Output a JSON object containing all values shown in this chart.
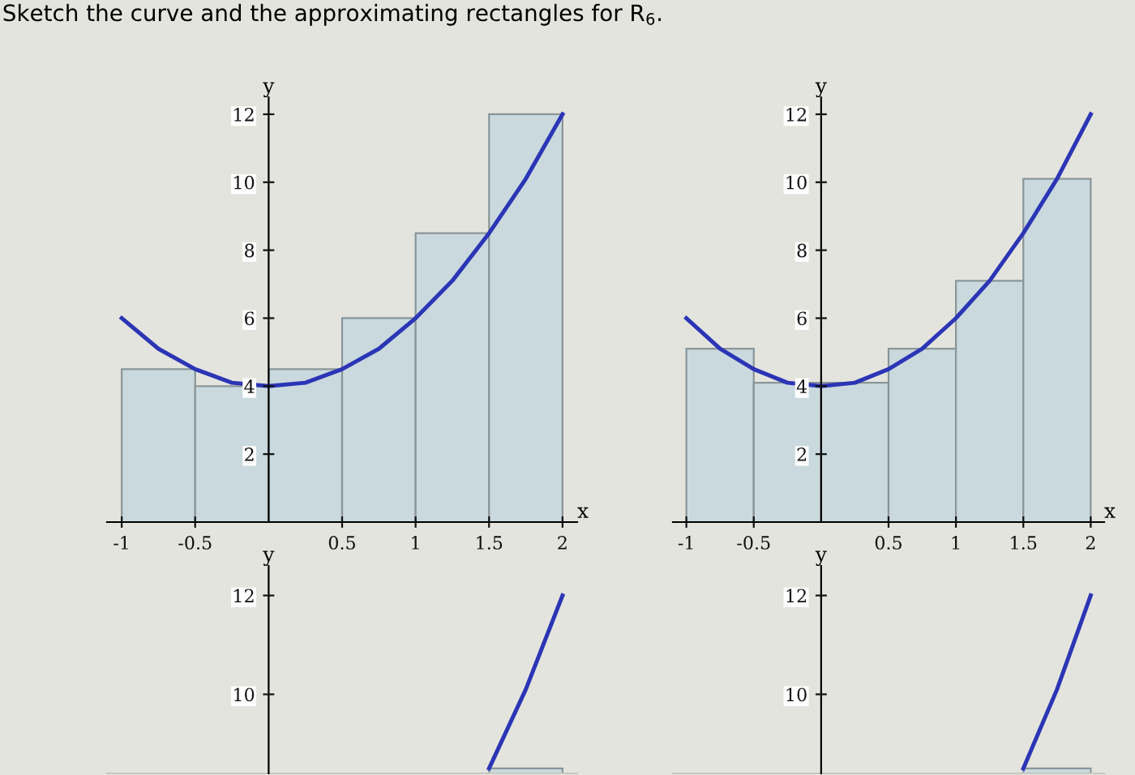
{
  "chart_data": [
    {
      "type": "bar",
      "title": "Sketch the curve and the approximating rectangles for R$_{6}$.",
      "xlabel": "x",
      "ylabel": "y",
      "xlim": [
        -1.1,
        2.1
      ],
      "ylim": [
        0,
        12.5
      ],
      "xticks": [
        -1,
        -0.5,
        0.5,
        1,
        1.5,
        2
      ],
      "yticks": [
        2,
        4,
        6,
        8,
        10,
        12
      ],
      "grid": false,
      "legend": false,
      "series": [
        {
          "color": "#c9d9de",
          "x": [
            -0.75,
            -0.25,
            0.25,
            0.75,
            1.25,
            1.75
          ],
          "values": [
            4.5,
            4.0,
            4.5,
            6.0,
            8.5,
            12.0
          ]
        },
        {
          "type": "line",
          "color": "#2b35b5",
          "x": [
            -1,
            -0.75,
            -0.5,
            -0.25,
            0,
            0.25,
            0.5,
            0.75,
            1,
            1.25,
            1.5,
            1.75,
            2
          ],
          "values": [
            6,
            5.1,
            4.5,
            4.1,
            4,
            4.1,
            4.5,
            5.1,
            6,
            7.1,
            8.5,
            10.1,
            12
          ]
        }
      ]
    },
    {
      "type": "bar",
      "xlabel": "x",
      "ylabel": "y",
      "xlim": [
        -1.1,
        2.1
      ],
      "ylim": [
        0,
        12.5
      ],
      "xticks": [
        -1,
        -0.5,
        0.5,
        1,
        1.5,
        2
      ],
      "yticks": [
        2,
        4,
        6,
        8,
        10,
        12
      ],
      "grid": false,
      "legend": false,
      "series": [
        {
          "color": "#c9d9de",
          "x": [
            -0.75,
            -0.25,
            0.25,
            0.75,
            1.25,
            1.75
          ],
          "values": [
            5.1,
            4.1,
            4.1,
            5.1,
            7.1,
            10.1
          ]
        },
        {
          "type": "line",
          "color": "#2b35b5",
          "x": [
            -1,
            -0.75,
            -0.5,
            -0.25,
            0,
            0.25,
            0.5,
            0.75,
            1,
            1.25,
            1.5,
            1.75,
            2
          ],
          "values": [
            6,
            5.1,
            4.5,
            4.1,
            4,
            4.1,
            4.5,
            5.1,
            6,
            7.1,
            8.5,
            10.1,
            12
          ]
        }
      ]
    },
    {
      "type": "bar",
      "ylabel": "y",
      "xlim": [
        -1.1,
        2.1
      ],
      "ylim": [
        8.4,
        12.6
      ],
      "yticks": [
        10,
        12
      ],
      "tick_labels": "y",
      "grid": false,
      "legend": false,
      "series": [
        {
          "color": "#c9d9de",
          "x": [
            1.75
          ],
          "values": [
            8.5
          ]
        },
        {
          "type": "line",
          "color": "#2b35b5",
          "x": [
            1.5,
            1.75,
            2
          ],
          "values": [
            8.5,
            10.1,
            12
          ]
        }
      ]
    },
    {
      "type": "bar",
      "ylabel": "y",
      "xlim": [
        -1.1,
        2.1
      ],
      "ylim": [
        8.4,
        12.6
      ],
      "yticks": [
        10,
        12
      ],
      "tick_labels": "y",
      "grid": false,
      "legend": false,
      "series": [
        {
          "color": "#c9d9de",
          "x": [
            1.75
          ],
          "values": [
            8.5
          ]
        },
        {
          "type": "line",
          "color": "#2b35b5",
          "x": [
            1.5,
            1.75,
            2
          ],
          "values": [
            8.5,
            10.1,
            12
          ]
        }
      ]
    }
  ]
}
